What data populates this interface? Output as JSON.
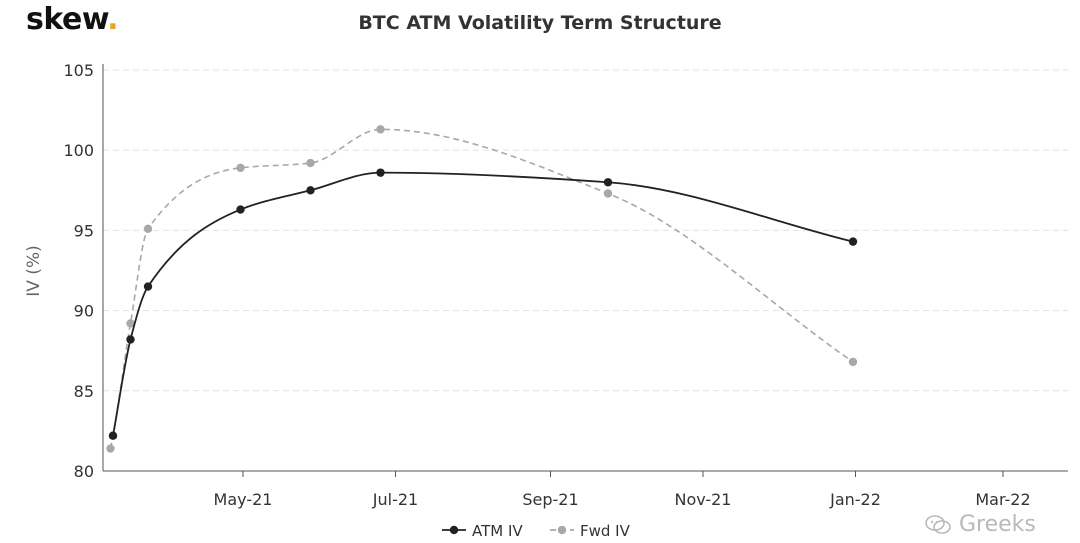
{
  "brand": {
    "name": "skew",
    "dot": ".",
    "dot_color": "#e5a823"
  },
  "watermark": {
    "text": "Greeks",
    "icon": "wechat-icon"
  },
  "chart_data": {
    "type": "line",
    "title": "BTC ATM Volatility Term Structure",
    "xlabel": "",
    "ylabel": "IV (%)",
    "x_axis_type": "date",
    "xlim": [
      "2021-03-06",
      "2022-03-27"
    ],
    "ylim": [
      80,
      105
    ],
    "y_ticks": [
      80,
      85,
      90,
      95,
      100,
      105
    ],
    "x_ticks": [
      {
        "date": "2021-05-01",
        "label": "May-21"
      },
      {
        "date": "2021-07-01",
        "label": "Jul-21"
      },
      {
        "date": "2021-09-01",
        "label": "Sep-21"
      },
      {
        "date": "2021-11-01",
        "label": "Nov-21"
      },
      {
        "date": "2022-01-01",
        "label": "Jan-22"
      },
      {
        "date": "2022-03-01",
        "label": "Mar-22"
      }
    ],
    "grid": {
      "horizontal": true,
      "vertical": false
    },
    "legend_position": "bottom-center",
    "series": [
      {
        "name": "ATM IV",
        "color": "#222222",
        "line_style": "solid",
        "points": [
          {
            "x": "2021-03-10",
            "y": 82.2
          },
          {
            "x": "2021-03-17",
            "y": 88.2
          },
          {
            "x": "2021-03-24",
            "y": 91.5
          },
          {
            "x": "2021-04-30",
            "y": 96.3
          },
          {
            "x": "2021-05-28",
            "y": 97.5
          },
          {
            "x": "2021-06-25",
            "y": 98.6
          },
          {
            "x": "2021-09-24",
            "y": 98.0
          },
          {
            "x": "2021-12-31",
            "y": 94.3
          }
        ]
      },
      {
        "name": "Fwd IV",
        "color": "#a8a8a8",
        "line_style": "dashed",
        "points": [
          {
            "x": "2021-03-09",
            "y": 81.4
          },
          {
            "x": "2021-03-10",
            "y": 82.2
          },
          {
            "x": "2021-03-17",
            "y": 89.2
          },
          {
            "x": "2021-03-24",
            "y": 95.1
          },
          {
            "x": "2021-04-30",
            "y": 98.9
          },
          {
            "x": "2021-05-28",
            "y": 99.2
          },
          {
            "x": "2021-06-25",
            "y": 101.3
          },
          {
            "x": "2021-09-24",
            "y": 97.3
          },
          {
            "x": "2021-12-31",
            "y": 86.8
          }
        ]
      }
    ]
  }
}
